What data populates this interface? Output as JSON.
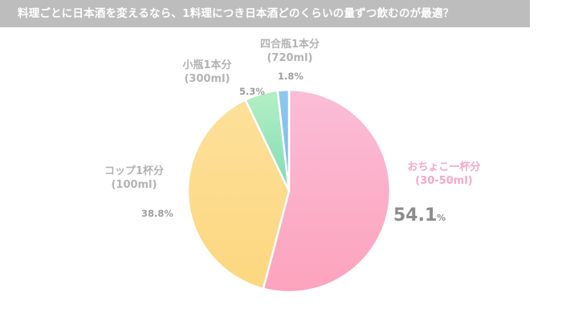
{
  "title": "料理ごとに日本酒を変えるなら、1料理につき日本酒どのくらいの量ずつ飲むのが最適？",
  "chart_data": {
    "type": "pie",
    "title": "料理ごとに日本酒を変えるなら、1料理につき日本酒どのくらいの量ずつ飲むのが最適？",
    "start_angle_deg": 0,
    "direction": "clockwise",
    "slices": [
      {
        "label": "おちょこ一杯分",
        "sublabel": "(30-50ml)",
        "value": 54.1,
        "display": "54.1",
        "unit": "%",
        "color_top": "#fbbdd6",
        "color_bottom": "#fda3bd"
      },
      {
        "label": "コップ1杯分",
        "sublabel": "(100ml)",
        "value": 38.8,
        "display": "38.8%",
        "color_top": "#fde09a",
        "color_bottom": "#fdd780"
      },
      {
        "label": "小瓶1本分",
        "sublabel": "(300ml)",
        "value": 5.3,
        "display": "5.3%",
        "color_top": "#b5efc4",
        "color_bottom": "#7fdcb6"
      },
      {
        "label": "四合瓶1本分",
        "sublabel": "(720ml)",
        "value": 1.8,
        "display": "1.8%",
        "color_top": "#8fc8ee",
        "color_bottom": "#7ab9e8"
      }
    ],
    "legend": "none (direct labels)"
  },
  "labels": {
    "s0": {
      "name": "おちょこ一杯分",
      "sub": "(30-50ml)",
      "pct": "54.1",
      "unit": "%"
    },
    "s1": {
      "name": "コップ1杯分",
      "sub": "(100ml)",
      "pct": "38.8%"
    },
    "s2": {
      "name": "小瓶1本分",
      "sub": "(300ml)",
      "pct": "5.3%"
    },
    "s3": {
      "name": "四合瓶1本分",
      "sub": "(720ml)",
      "pct": "1.8%"
    }
  }
}
